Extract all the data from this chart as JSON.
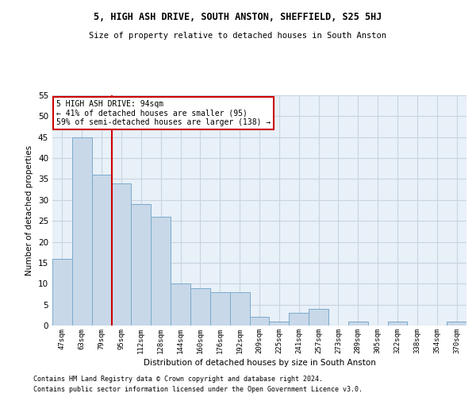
{
  "title": "5, HIGH ASH DRIVE, SOUTH ANSTON, SHEFFIELD, S25 5HJ",
  "subtitle": "Size of property relative to detached houses in South Anston",
  "xlabel": "Distribution of detached houses by size in South Anston",
  "ylabel": "Number of detached properties",
  "footer_line1": "Contains HM Land Registry data © Crown copyright and database right 2024.",
  "footer_line2": "Contains public sector information licensed under the Open Government Licence v3.0.",
  "categories": [
    "47sqm",
    "63sqm",
    "79sqm",
    "95sqm",
    "112sqm",
    "128sqm",
    "144sqm",
    "160sqm",
    "176sqm",
    "192sqm",
    "209sqm",
    "225sqm",
    "241sqm",
    "257sqm",
    "273sqm",
    "289sqm",
    "305sqm",
    "322sqm",
    "338sqm",
    "354sqm",
    "370sqm"
  ],
  "values": [
    16,
    45,
    36,
    34,
    29,
    26,
    10,
    9,
    8,
    8,
    2,
    1,
    3,
    4,
    0,
    1,
    0,
    1,
    0,
    0,
    1
  ],
  "bar_color": "#c8d8e8",
  "bar_edge_color": "#7aaacc",
  "vline_color": "#cc0000",
  "annotation_text": "5 HIGH ASH DRIVE: 94sqm\n← 41% of detached houses are smaller (95)\n59% of semi-detached houses are larger (138) →",
  "annotation_box_color": "#ffffff",
  "annotation_box_edge_color": "#cc0000",
  "ylim": [
    0,
    55
  ],
  "yticks": [
    0,
    5,
    10,
    15,
    20,
    25,
    30,
    35,
    40,
    45,
    50,
    55
  ],
  "bg_axes": "#e8f0f8",
  "background_color": "#ffffff",
  "grid_color": "#c8d4e0"
}
